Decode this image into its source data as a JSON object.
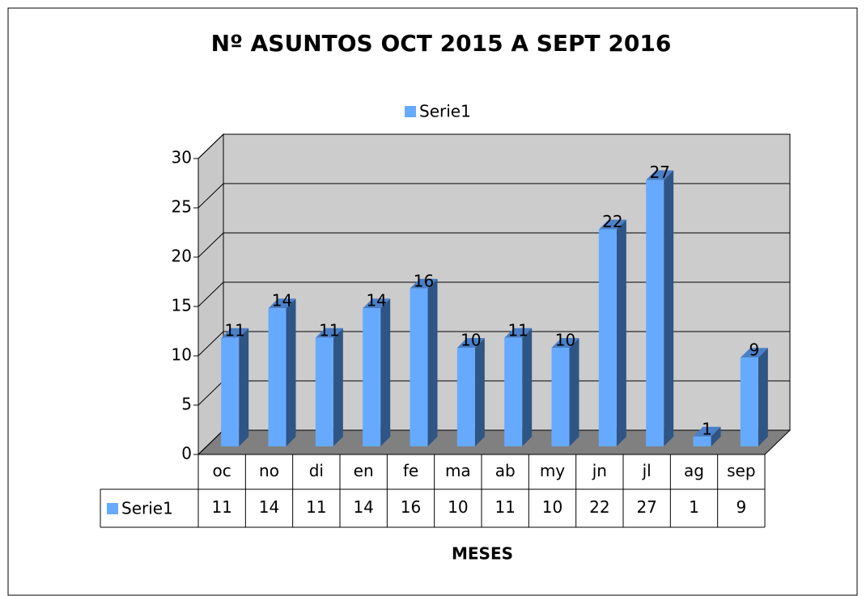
{
  "chart_data": {
    "type": "bar",
    "title": "Nº ASUNTOS OCT 2015 A SEPT 2016",
    "x_label": "MESES",
    "categories": [
      "oc",
      "no",
      "di",
      "en",
      "fe",
      "ma",
      "ab",
      "my",
      "jn",
      "jl",
      "ag",
      "sep"
    ],
    "series": [
      {
        "name": "Serie1",
        "color": "#66aaff",
        "values": [
          11,
          14,
          11,
          14,
          16,
          10,
          11,
          10,
          22,
          27,
          1,
          9
        ]
      }
    ],
    "ylim": [
      0,
      30
    ],
    "yticks": [
      0,
      5,
      10,
      15,
      20,
      25,
      30
    ],
    "grid": true,
    "legend": "top"
  }
}
